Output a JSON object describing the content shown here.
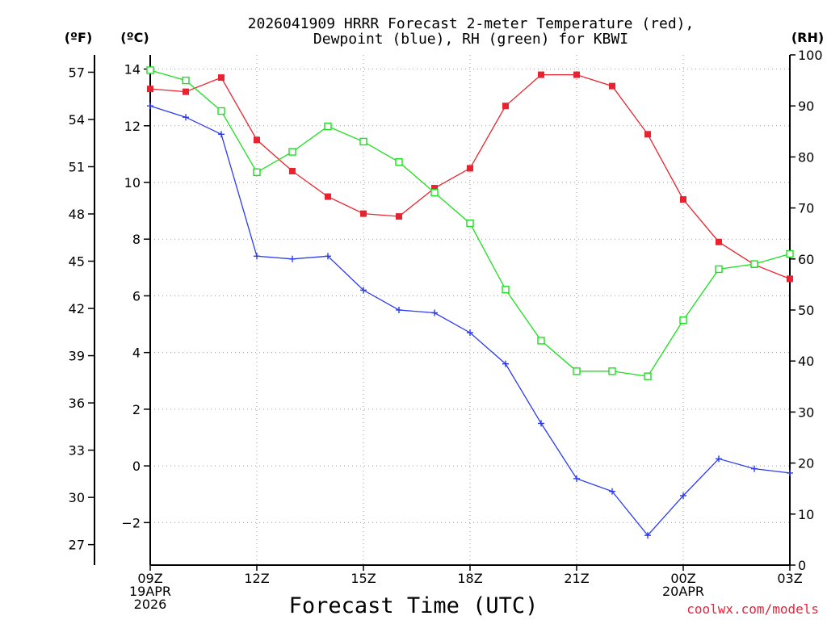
{
  "chart_data": {
    "type": "line",
    "title_line1": "2026041909 HRRR Forecast 2-meter Temperature (red),",
    "title_line2": "Dewpoint (blue), RH (green) for KBWI",
    "unit_f": "(ºF)",
    "unit_c": "(ºC)",
    "unit_rh": "(RH)",
    "xlabel": "Forecast Time (UTC)",
    "credit": "coolwx.com/models",
    "x_hours": [
      0,
      1,
      2,
      3,
      4,
      5,
      6,
      7,
      8,
      9,
      10,
      11,
      12,
      13,
      14,
      15,
      16,
      17,
      18
    ],
    "x_ticks": [
      {
        "hour": 0,
        "lines": [
          "09Z",
          "19APR",
          "2026"
        ]
      },
      {
        "hour": 3,
        "lines": [
          "12Z"
        ]
      },
      {
        "hour": 6,
        "lines": [
          "15Z"
        ]
      },
      {
        "hour": 9,
        "lines": [
          "18Z"
        ]
      },
      {
        "hour": 12,
        "lines": [
          "21Z"
        ]
      },
      {
        "hour": 15,
        "lines": [
          "00Z",
          "20APR"
        ]
      },
      {
        "hour": 18,
        "lines": [
          "03Z"
        ]
      }
    ],
    "celsius_axis": {
      "ylim": [
        -3.5,
        14.5
      ],
      "ticks": [
        -2,
        0,
        2,
        4,
        6,
        8,
        10,
        12,
        14
      ]
    },
    "fahrenheit_axis": {
      "ticks": [
        27,
        30,
        33,
        36,
        39,
        42,
        45,
        48,
        51,
        54,
        57
      ]
    },
    "rh_axis": {
      "ylim": [
        0,
        100
      ],
      "ticks": [
        0,
        10,
        20,
        30,
        40,
        50,
        60,
        70,
        80,
        90,
        100
      ]
    },
    "series": [
      {
        "name": "Temperature",
        "unit": "C",
        "color": "#e8232f",
        "marker": "filled-square",
        "values": [
          13.3,
          13.2,
          13.7,
          11.5,
          10.4,
          9.5,
          8.9,
          8.8,
          9.8,
          10.5,
          12.7,
          13.8,
          13.8,
          13.4,
          11.7,
          9.4,
          7.9,
          7.1,
          6.6
        ]
      },
      {
        "name": "Dewpoint",
        "unit": "C",
        "color": "#2b3bef",
        "marker": "plus",
        "values": [
          12.7,
          12.3,
          11.7,
          7.4,
          7.3,
          7.4,
          6.2,
          5.5,
          5.4,
          4.7,
          3.6,
          1.5,
          -0.45,
          -0.9,
          -2.45,
          -1.05,
          0.25,
          -0.1,
          -0.25
        ]
      },
      {
        "name": "RH",
        "unit": "%",
        "color": "#19e11e",
        "marker": "open-square",
        "values": [
          97,
          95,
          89,
          77,
          81,
          86,
          83,
          79,
          73,
          67,
          54,
          44,
          38,
          38,
          37,
          48,
          58,
          59,
          61
        ]
      }
    ]
  }
}
